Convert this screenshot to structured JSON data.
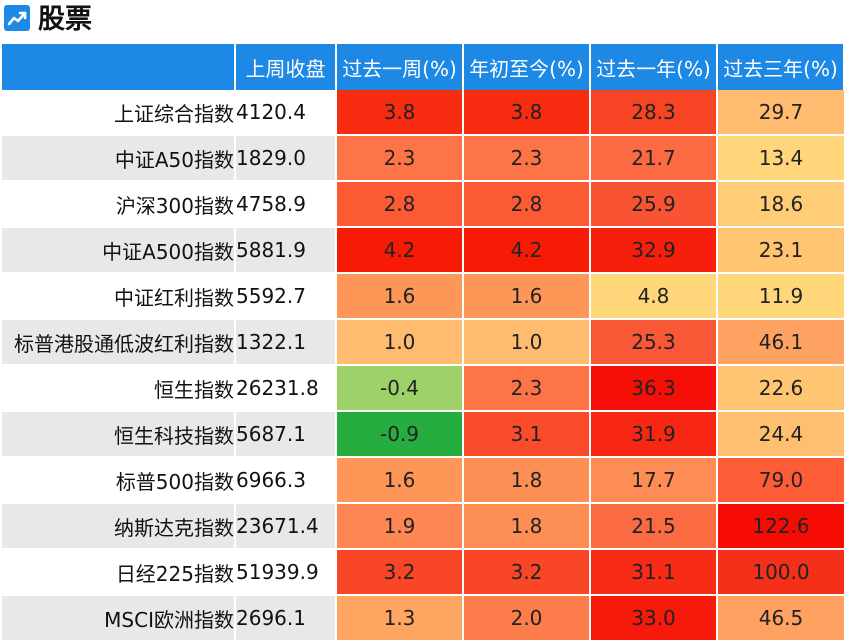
{
  "header": {
    "title": "股票",
    "icon": "trend-chart-icon",
    "icon_color": "#1e88e5"
  },
  "table": {
    "columns": [
      "",
      "上周收盘",
      "过去一周(%)",
      "年初至今(%)",
      "过去一年(%)",
      "过去三年(%)"
    ],
    "rows": [
      {
        "name": "上证综合指数",
        "close": "4120.4",
        "w": "3.8",
        "ytd": "3.8",
        "y1": "28.3",
        "y3": "29.7"
      },
      {
        "name": "中证A50指数",
        "close": "1829.0",
        "w": "2.3",
        "ytd": "2.3",
        "y1": "21.7",
        "y3": "13.4"
      },
      {
        "name": "沪深300指数",
        "close": "4758.9",
        "w": "2.8",
        "ytd": "2.8",
        "y1": "25.9",
        "y3": "18.6"
      },
      {
        "name": "中证A500指数",
        "close": "5881.9",
        "w": "4.2",
        "ytd": "4.2",
        "y1": "32.9",
        "y3": "23.1"
      },
      {
        "name": "中证红利指数",
        "close": "5592.7",
        "w": "1.6",
        "ytd": "1.6",
        "y1": "4.8",
        "y3": "11.9"
      },
      {
        "name": "标普港股通低波红利指数",
        "close": "1322.1",
        "w": "1.0",
        "ytd": "1.0",
        "y1": "25.3",
        "y3": "46.1"
      },
      {
        "name": "恒生指数",
        "close": "26231.8",
        "w": "-0.4",
        "ytd": "2.3",
        "y1": "36.3",
        "y3": "22.6"
      },
      {
        "name": "恒生科技指数",
        "close": "5687.1",
        "w": "-0.9",
        "ytd": "3.1",
        "y1": "31.9",
        "y3": "24.4"
      },
      {
        "name": "标普500指数",
        "close": "6966.3",
        "w": "1.6",
        "ytd": "1.8",
        "y1": "17.7",
        "y3": "79.0"
      },
      {
        "name": "纳斯达克指数",
        "close": "23671.4",
        "w": "1.9",
        "ytd": "1.8",
        "y1": "21.5",
        "y3": "122.6"
      },
      {
        "name": "日经225指数",
        "close": "51939.9",
        "w": "3.2",
        "ytd": "3.2",
        "y1": "31.1",
        "y3": "100.0"
      },
      {
        "name": "MSCI欧洲指数",
        "close": "2696.1",
        "w": "1.3",
        "ytd": "2.0",
        "y1": "33.0",
        "y3": "46.5"
      }
    ],
    "cell_colors": {
      "w": [
        "#f72c10",
        "#fd7447",
        "#fb5a33",
        "#f71b06",
        "#fe9657",
        "#ffbb6f",
        "#9ed16a",
        "#25ad3f",
        "#fe9657",
        "#fd8652",
        "#f94627",
        "#fea562"
      ],
      "ytd": [
        "#f72c10",
        "#fd7447",
        "#fb5a33",
        "#f71b06",
        "#fe9657",
        "#ffbb6f",
        "#fd7447",
        "#fa4b2a",
        "#fe8f54",
        "#fe8f54",
        "#f94627",
        "#fd7c4c"
      ],
      "y1": [
        "#f74424",
        "#fb6a40",
        "#f85332",
        "#f71e0c",
        "#ffd67a",
        "#f85835",
        "#f50f07",
        "#f72713",
        "#fd8c55",
        "#fb6b42",
        "#f72b16",
        "#f71a0a"
      ],
      "y3": [
        "#ffbb6f",
        "#ffd67a",
        "#ffcd75",
        "#ffc571",
        "#ffd67a",
        "#fea262",
        "#ffc572",
        "#ffbf70",
        "#fd5c37",
        "#f70b05",
        "#f42f1a",
        "#fea161"
      ]
    }
  }
}
